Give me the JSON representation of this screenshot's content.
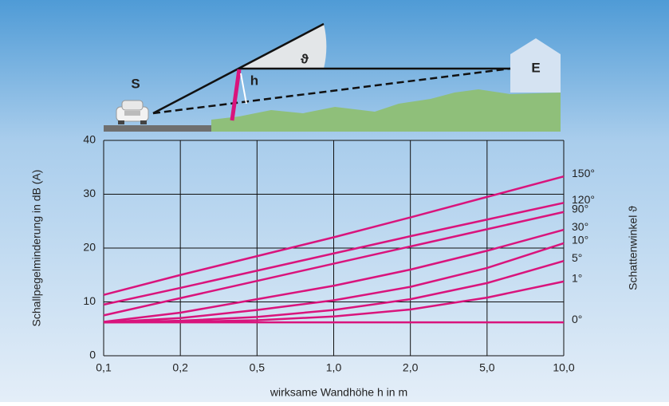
{
  "chart_data": {
    "type": "line",
    "annotations": [
      "S",
      "h",
      "ϑ",
      "E"
    ],
    "x_label": "wirksame Wandhöhe h in m",
    "y_label": "Schallpegelminderung in dB (A)",
    "y2_label": "Schattenwinkel ϑ",
    "categories": [
      "0,1",
      "0,2",
      "0,5",
      "1,0",
      "2,0",
      "5,0",
      "10,0"
    ],
    "ylim": [
      0,
      40
    ],
    "yticks": [
      0,
      10,
      20,
      30,
      40
    ],
    "grid": true,
    "series": [
      {
        "name": "150°",
        "color": "#d9147c",
        "values": [
          11.3,
          15,
          18.5,
          22,
          25.7,
          29.5,
          33.3
        ]
      },
      {
        "name": "120°",
        "color": "#d9147c",
        "values": [
          9.5,
          12.6,
          15.8,
          19,
          22.2,
          25.3,
          28.4
        ]
      },
      {
        "name": "90°",
        "color": "#d9147c",
        "values": [
          7.5,
          10.7,
          13.9,
          17.1,
          20.3,
          23.5,
          26.7
        ]
      },
      {
        "name": "30°",
        "color": "#d9147c",
        "values": [
          6.3,
          8,
          10.5,
          13,
          16,
          19.5,
          23.4
        ]
      },
      {
        "name": "10°",
        "color": "#d9147c",
        "values": [
          6.2,
          7,
          8.5,
          10.3,
          12.8,
          16.3,
          20.9
        ]
      },
      {
        "name": "5°",
        "color": "#d9147c",
        "values": [
          6.2,
          6.5,
          7.2,
          8.5,
          10.5,
          13.5,
          17.6
        ]
      },
      {
        "name": "1°",
        "color": "#d9147c",
        "values": [
          6.2,
          6.3,
          6.6,
          7.3,
          8.6,
          10.8,
          13.8
        ]
      },
      {
        "name": "0°",
        "color": "#d9147c",
        "values": [
          6.2,
          6.2,
          6.2,
          6.2,
          6.2,
          6.2,
          6.2
        ]
      }
    ]
  }
}
